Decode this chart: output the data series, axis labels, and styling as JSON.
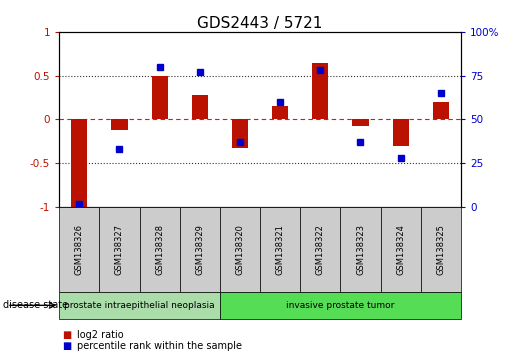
{
  "title": "GDS2443 / 5721",
  "samples": [
    "GSM138326",
    "GSM138327",
    "GSM138328",
    "GSM138329",
    "GSM138320",
    "GSM138321",
    "GSM138322",
    "GSM138323",
    "GSM138324",
    "GSM138325"
  ],
  "log2_ratio": [
    -1.0,
    -0.12,
    0.5,
    0.28,
    -0.32,
    0.15,
    0.65,
    -0.08,
    -0.3,
    0.2
  ],
  "percentile_rank": [
    2,
    33,
    80,
    77,
    37,
    60,
    78,
    37,
    28,
    65
  ],
  "disease_groups": [
    {
      "label": "prostate intraepithelial neoplasia",
      "start": 0,
      "end": 4,
      "color": "#aaddaa"
    },
    {
      "label": "invasive prostate tumor",
      "start": 4,
      "end": 10,
      "color": "#55dd55"
    }
  ],
  "bar_color": "#bb1100",
  "dot_color": "#0000cc",
  "yticks_left": [
    -1,
    -0.5,
    0,
    0.5,
    1
  ],
  "yticks_right": [
    0,
    25,
    50,
    75,
    100
  ],
  "ylim_left": [
    -1.0,
    1.0
  ],
  "ylim_right": [
    0,
    100
  ],
  "zero_line_color": "#cc2200",
  "dotted_line_color": "#333333",
  "legend_red_label": "log2 ratio",
  "legend_blue_label": "percentile rank within the sample",
  "disease_state_label": "disease state",
  "bar_width": 0.4,
  "sample_box_color": "#cccccc",
  "sample_fontsize": 6.0,
  "title_fontsize": 11
}
